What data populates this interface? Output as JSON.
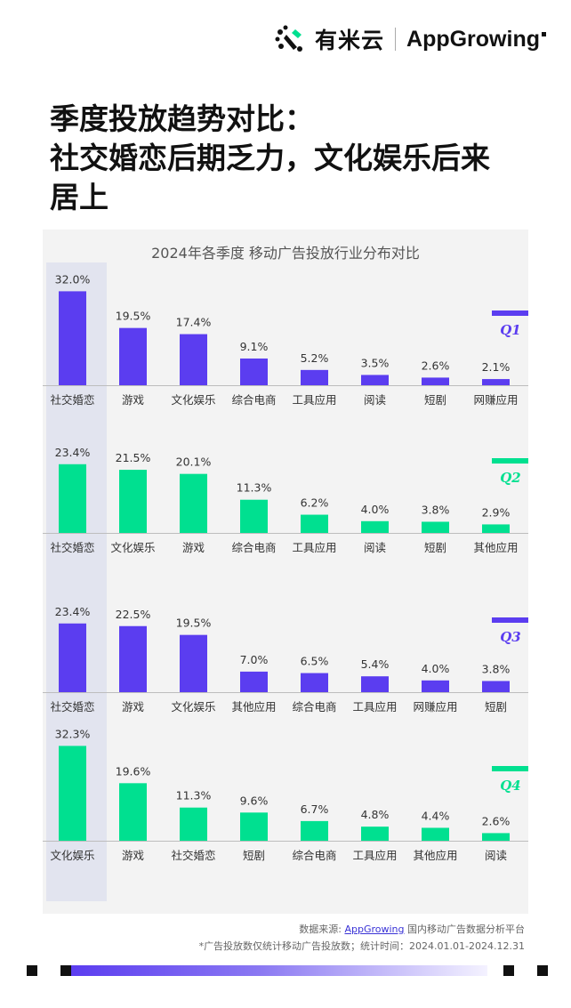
{
  "header": {
    "brand_cn": "有米云",
    "brand_en": "AppGrowing"
  },
  "page_title_lines": [
    "季度投放趋势对比：",
    "社交婚恋后期乏力，文化娱乐后来",
    "居上"
  ],
  "chart_data": {
    "type": "bar",
    "title": "2024年各季度 移动广告投放行业分布对比",
    "highlight_category": "社交婚恋",
    "panels": [
      {
        "quarter": "Q1",
        "color": "#5b3df0",
        "categories": [
          "社交婚恋",
          "游戏",
          "文化娱乐",
          "综合电商",
          "工具应用",
          "阅读",
          "短剧",
          "网赚应用"
        ],
        "values": [
          32.0,
          19.5,
          17.4,
          9.1,
          5.2,
          3.5,
          2.6,
          2.1
        ],
        "labels": [
          "32.0%",
          "19.5%",
          "17.4%",
          "9.1%",
          "5.2%",
          "3.5%",
          "2.6%",
          "2.1%"
        ]
      },
      {
        "quarter": "Q2",
        "color": "#00e090",
        "categories": [
          "社交婚恋",
          "文化娱乐",
          "游戏",
          "综合电商",
          "工具应用",
          "阅读",
          "短剧",
          "其他应用"
        ],
        "values": [
          23.4,
          21.5,
          20.1,
          11.3,
          6.2,
          4.0,
          3.8,
          2.9
        ],
        "labels": [
          "23.4%",
          "21.5%",
          "20.1%",
          "11.3%",
          "6.2%",
          "4.0%",
          "3.8%",
          "2.9%"
        ]
      },
      {
        "quarter": "Q3",
        "color": "#5b3df0",
        "categories": [
          "社交婚恋",
          "游戏",
          "文化娱乐",
          "其他应用",
          "综合电商",
          "工具应用",
          "网赚应用",
          "短剧"
        ],
        "values": [
          23.4,
          22.5,
          19.5,
          7.0,
          6.5,
          5.4,
          4.0,
          3.8
        ],
        "labels": [
          "23.4%",
          "22.5%",
          "19.5%",
          "7.0%",
          "6.5%",
          "5.4%",
          "4.0%",
          "3.8%"
        ]
      },
      {
        "quarter": "Q4",
        "color": "#00e090",
        "categories": [
          "文化娱乐",
          "游戏",
          "社交婚恋",
          "短剧",
          "综合电商",
          "工具应用",
          "其他应用",
          "阅读"
        ],
        "values": [
          32.3,
          19.6,
          11.3,
          9.6,
          6.7,
          4.8,
          4.4,
          2.6
        ],
        "labels": [
          "32.3%",
          "19.6%",
          "11.3%",
          "9.6%",
          "6.7%",
          "4.8%",
          "4.4%",
          "2.6%"
        ]
      }
    ]
  },
  "footnotes": {
    "source_prefix": "数据来源: ",
    "source_link": "AppGrowing",
    "source_suffix": " 国内移动广告数据分析平台",
    "note": "*广告投放数仅统计移动广告投放数；统计时间：2024.01.01-2024.12.31"
  },
  "colors": {
    "purple": "#5b3df0",
    "green": "#00e090",
    "highlight_bg": "#e2e4ef"
  }
}
